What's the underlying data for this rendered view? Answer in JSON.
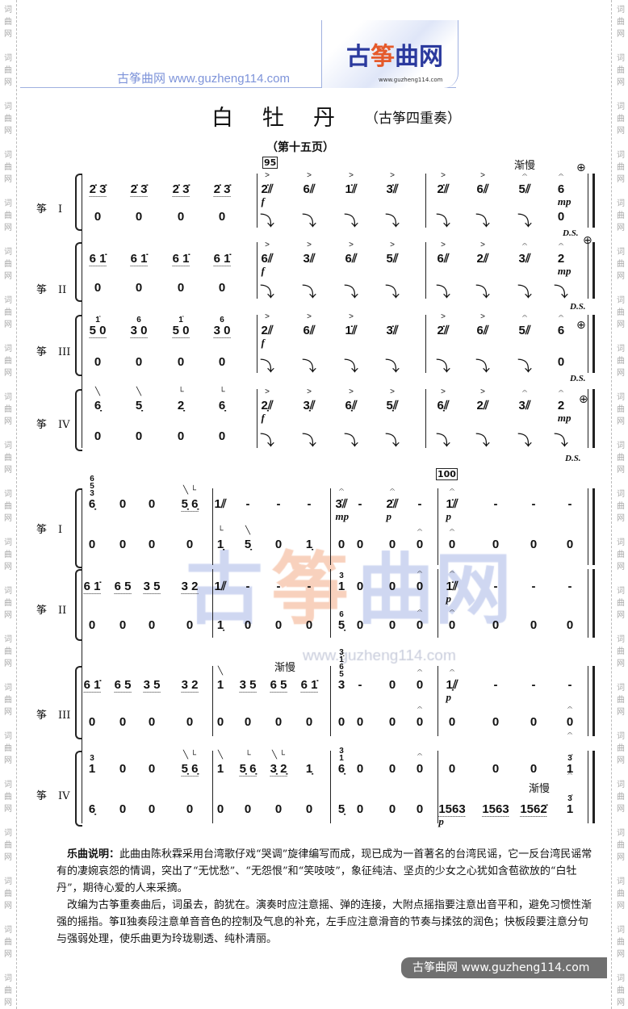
{
  "margin_watermark": "词曲网",
  "banner": {
    "site_text": "古筝曲网 www.guzheng114.com",
    "logo": {
      "gu": "古",
      "zheng": "筝",
      "qu_wang": "曲网",
      "url": "www.guzheng114.com"
    }
  },
  "title": "白牡丹",
  "subtitle": "（古筝四重奏）",
  "page_label": "（第十五页）",
  "watermark": {
    "text_gu": "古",
    "text_zheng": "筝",
    "text_rest": "曲网",
    "url": "www.guzheng114.com"
  },
  "instruments": [
    {
      "name": "筝",
      "numeral": "I"
    },
    {
      "name": "筝",
      "numeral": "II"
    },
    {
      "name": "筝",
      "numeral": "III"
    },
    {
      "name": "筝",
      "numeral": "IV"
    }
  ],
  "rehearsal_marks": [
    "95",
    "100"
  ],
  "tempo_marks": [
    "渐慢",
    "渐慢",
    "渐慢"
  ],
  "ds_label": "D.S.",
  "coda_symbol": "⊕",
  "systems": [
    {
      "rows": [
        [
          {
            "t": "2̇ 3̇",
            "u": 1
          },
          {
            "t": "2̇ 3̇",
            "u": 1
          },
          {
            "t": "2̇ 3̇",
            "u": 1
          },
          {
            "t": "2̇ 3̇",
            "u": 1
          },
          {
            "t": "2̇⫽",
            "a": ">",
            "d": "f"
          },
          {
            "t": "6⫽",
            "a": ">"
          },
          {
            "t": "1̇⫽",
            "a": ">"
          },
          {
            "t": "3̇⫽",
            "a": ">"
          },
          {
            "t": "2̇⫽",
            "a": ">"
          },
          {
            "t": "6⫽",
            "a": ">"
          },
          {
            "t": "5⫽",
            "a": "𝄐"
          },
          {
            "t": "6",
            "a": "𝄐",
            "d": "mp"
          }
        ],
        [
          {
            "t": "0"
          },
          {
            "t": "0"
          },
          {
            "t": "0"
          },
          {
            "t": "0"
          },
          {
            "t": "⤵",
            "g": 1
          },
          {
            "t": "⤵",
            "g": 1
          },
          {
            "t": "⤵",
            "g": 1
          },
          {
            "t": "⤵",
            "g": 1
          },
          {
            "t": "⤵",
            "g": 1
          },
          {
            "t": "⤵",
            "g": 1
          },
          {
            "t": "⤵",
            "g": 1
          },
          {
            "t": "0"
          }
        ],
        [
          {
            "t": "6 1̇",
            "u": 1
          },
          {
            "t": "6 1̇",
            "u": 1
          },
          {
            "t": "6 1̇",
            "u": 1
          },
          {
            "t": "6 1̇",
            "u": 1
          },
          {
            "t": "6⫽",
            "a": ">",
            "d": "f"
          },
          {
            "t": "3⫽",
            "a": ">"
          },
          {
            "t": "6⫽",
            "a": ">"
          },
          {
            "t": "5⫽",
            "a": ">"
          },
          {
            "t": "6⫽",
            "a": ">"
          },
          {
            "t": "2⫽",
            "a": ">"
          },
          {
            "t": "3⫽",
            "a": "𝄐"
          },
          {
            "t": "2",
            "a": "𝄐",
            "d": "mp"
          }
        ],
        [
          {
            "t": "0"
          },
          {
            "t": "0"
          },
          {
            "t": "0"
          },
          {
            "t": "0"
          },
          {
            "t": "⤵",
            "g": 1
          },
          {
            "t": "⤵",
            "g": 1
          },
          {
            "t": "⤵",
            "g": 1
          },
          {
            "t": "⤵",
            "g": 1
          },
          {
            "t": "⤵",
            "g": 1
          },
          {
            "t": "⤵",
            "g": 1
          },
          {
            "t": "⤵",
            "g": 1
          },
          {
            "t": "⤵",
            "g": 1
          }
        ],
        [
          {
            "t": "5 0",
            "top": "1̇",
            "u": 1
          },
          {
            "t": "3 0",
            "top": "6",
            "u": 1
          },
          {
            "t": "5 0",
            "top": "1̇",
            "u": 1
          },
          {
            "t": "3 0",
            "top": "6",
            "u": 1
          },
          {
            "t": "2⫽",
            "a": ">",
            "d": "f"
          },
          {
            "t": "6⫽",
            "a": ">"
          },
          {
            "t": "1̇⫽",
            "a": ">"
          },
          {
            "t": "3̇⫽"
          },
          {
            "t": "2̇⫽",
            "a": ">"
          },
          {
            "t": "6⫽",
            "a": ">"
          },
          {
            "t": "5⫽",
            "a": "𝄐"
          },
          {
            "t": "6",
            "a": "𝄐"
          }
        ],
        [
          {
            "t": "0"
          },
          {
            "t": "0"
          },
          {
            "t": "0"
          },
          {
            "t": "0"
          },
          {
            "t": "⤵",
            "g": 1
          },
          {
            "t": "⤵",
            "g": 1
          },
          {
            "t": "⤵",
            "g": 1
          },
          {
            "t": "⤵",
            "g": 1
          },
          {
            "t": "⤵",
            "g": 1
          },
          {
            "t": "⤵",
            "g": 1
          },
          {
            "t": "⤵",
            "g": 1
          },
          {
            "t": "0"
          }
        ],
        [
          {
            "t": "6̣",
            "a": "╲"
          },
          {
            "t": "5̣",
            "a": "╲"
          },
          {
            "t": "2̣",
            "a": "└"
          },
          {
            "t": "6̣",
            "a": "└"
          },
          {
            "t": "2̣⫽",
            "a": ">",
            "d": "f"
          },
          {
            "t": "3̣⫽",
            "a": ">"
          },
          {
            "t": "6̣⫽",
            "a": ">"
          },
          {
            "t": "5̣⫽",
            "a": ">"
          },
          {
            "t": "6̣⫽",
            "a": ">"
          },
          {
            "t": "2⫽",
            "a": ">"
          },
          {
            "t": "3⫽",
            "a": "𝄐"
          },
          {
            "t": "2",
            "a": "𝄐",
            "d": "mp"
          }
        ],
        [
          {
            "t": "0"
          },
          {
            "t": "0"
          },
          {
            "t": "0"
          },
          {
            "t": "0"
          },
          {
            "t": "⤵",
            "g": 1
          },
          {
            "t": "⤵",
            "g": 1
          },
          {
            "t": "⤵",
            "g": 1
          },
          {
            "t": "⤵",
            "g": 1
          },
          {
            "t": "⤵",
            "g": 1
          },
          {
            "t": "⤵",
            "g": 1
          },
          {
            "t": "⤵",
            "g": 1
          },
          {
            "t": "⤵",
            "g": 1
          }
        ]
      ]
    },
    {
      "rows": [
        [
          {
            "t": "6̣",
            "top": "6\n5\n3"
          },
          {
            "t": "0"
          },
          {
            "t": "0"
          },
          {
            "t": "5̣ 6̣",
            "u": 1,
            "a": "╲ └"
          },
          {
            "t": "1⫽"
          },
          {
            "t": "-"
          },
          {
            "t": "-"
          },
          {
            "t": "-"
          },
          {
            "t": "3̇⫽",
            "a": "𝄐",
            "d": "mp"
          },
          {
            "t": "-"
          },
          {
            "t": "2̇⫽",
            "a": "𝄐",
            "d": "p"
          },
          {
            "t": "-"
          },
          {
            "t": "1̇⫽",
            "a": "𝄐",
            "d": "p"
          },
          {
            "t": "-"
          },
          {
            "t": "-"
          },
          {
            "t": "-"
          }
        ],
        [
          {
            "t": "0"
          },
          {
            "t": "0"
          },
          {
            "t": "0"
          },
          {
            "t": "0"
          },
          {
            "t": "1̣",
            "a": "└"
          },
          {
            "t": "5̣",
            "a": "╲"
          },
          {
            "t": "0"
          },
          {
            "t": "1̣"
          },
          {
            "t": "0"
          },
          {
            "t": "0"
          },
          {
            "t": "0"
          },
          {
            "t": "0",
            "a": "𝄐"
          },
          {
            "t": "0",
            "a": "𝄐"
          },
          {
            "t": "0"
          },
          {
            "t": "0"
          },
          {
            "t": "0"
          }
        ],
        [
          {
            "t": "6 1̇",
            "u": 1
          },
          {
            "t": "6 5",
            "u": 1
          },
          {
            "t": "3 5",
            "u": 1
          },
          {
            "t": "3 2",
            "u": 1
          },
          {
            "t": "1⫽"
          },
          {
            "t": "-"
          },
          {
            "t": "-"
          },
          {
            "t": "-"
          },
          {
            "t": "1",
            "top": "3"
          },
          {
            "t": "0"
          },
          {
            "t": "0"
          },
          {
            "t": "0",
            "a": "𝄐"
          },
          {
            "t": "1̇⫽",
            "a": "𝄐",
            "d": "p"
          },
          {
            "t": "-"
          },
          {
            "t": "-"
          },
          {
            "t": "-"
          }
        ],
        [
          {
            "t": "0"
          },
          {
            "t": "0"
          },
          {
            "t": "0"
          },
          {
            "t": "0"
          },
          {
            "t": "1̣"
          },
          {
            "t": "0"
          },
          {
            "t": "0"
          },
          {
            "t": "0"
          },
          {
            "t": "5̣",
            "top": "6"
          },
          {
            "t": "0"
          },
          {
            "t": "0"
          },
          {
            "t": "0",
            "a": "𝄐"
          },
          {
            "t": "0",
            "a": "𝄐"
          },
          {
            "t": "0"
          },
          {
            "t": "0"
          },
          {
            "t": "0"
          }
        ],
        [
          {
            "t": "6 1̇",
            "u": 1
          },
          {
            "t": "6 5",
            "u": 1
          },
          {
            "t": "3 5",
            "u": 1
          },
          {
            "t": "3 2",
            "u": 1
          },
          {
            "t": "1",
            "a": "╲"
          },
          {
            "t": "3 5",
            "u": 1
          },
          {
            "t": "6 5",
            "u": 1
          },
          {
            "t": "6 1̇",
            "u": 1
          },
          {
            "t": "3",
            "top": "3̣\n1\n6\n5"
          },
          {
            "t": "-"
          },
          {
            "t": "0"
          },
          {
            "t": "0",
            "a": "𝄐"
          },
          {
            "t": "1̣⫽",
            "a": "𝄐",
            "d": "p"
          },
          {
            "t": "-"
          },
          {
            "t": "-"
          },
          {
            "t": "-"
          }
        ],
        [
          {
            "t": "0"
          },
          {
            "t": "0"
          },
          {
            "t": "0"
          },
          {
            "t": "0"
          },
          {
            "t": "0"
          },
          {
            "t": "0"
          },
          {
            "t": "0"
          },
          {
            "t": "0"
          },
          {
            "t": "0"
          },
          {
            "t": "0"
          },
          {
            "t": "0"
          },
          {
            "t": "0",
            "a": "𝄐"
          },
          {
            "t": "0"
          },
          {
            "t": "0"
          },
          {
            "t": "0"
          },
          {
            "t": "0",
            "a": "𝄐"
          }
        ],
        [
          {
            "t": "1",
            "top": "3"
          },
          {
            "t": "0"
          },
          {
            "t": "0"
          },
          {
            "t": "5̣ 6̣",
            "u": 1,
            "a": "╲ └"
          },
          {
            "t": "1",
            "a": "╲"
          },
          {
            "t": "5̣ 6̣",
            "u": 1,
            "a": "└"
          },
          {
            "t": "3̣ 2̣",
            "u": 1,
            "a": "╲ └"
          },
          {
            "t": "1̣"
          },
          {
            "t": "6̣",
            "top": "3\n1"
          },
          {
            "t": "0"
          },
          {
            "t": "0"
          },
          {
            "t": "0",
            "a": "𝄐"
          },
          {
            "t": "0"
          },
          {
            "t": "0"
          },
          {
            "t": "0"
          },
          {
            "t": "1",
            "top": "3̇",
            "a": "𝄐"
          }
        ],
        [
          {
            "t": "6̣"
          },
          {
            "t": "0"
          },
          {
            "t": "0"
          },
          {
            "t": "0"
          },
          {
            "t": "0"
          },
          {
            "t": "0"
          },
          {
            "t": "0"
          },
          {
            "t": "0"
          },
          {
            "t": "5̣"
          },
          {
            "t": "0"
          },
          {
            "t": "0"
          },
          {
            "t": "0"
          },
          {
            "t": "1563",
            "u": 1,
            "d": "p"
          },
          {
            "t": "1563",
            "u": 1
          },
          {
            "t": "1562̇",
            "u": 1
          },
          {
            "t": "1",
            "top": "3̇",
            "a": "𝄐"
          }
        ]
      ]
    }
  ],
  "notes": {
    "heading": "乐曲说明：",
    "para1": "此曲由陈秋霖采用台湾歌仔戏“哭调”旋律编写而成，现已成为一首著名的台湾民谣，它一反台湾民谣常有的凄婉哀怨的情调，突出了“无忧愁”、“无怨恨”和“笑吱吱”，象征纯洁、坚贞的少女之心犹如含苞欲放的“白牡丹”，期待心爱的人来采摘。",
    "para2": "改编为古筝重奏曲后，词虽去，韵犹在。演奏时应注意摇、弹的连接，大附点摇指要注意出音平和，避免习惯性渐强的摇指。筝Ⅱ独奏段注意单音音色的控制及气息的补充，左手应注意滑音的节奏与揉弦的润色；快板段要注意分句与强弱处理，使乐曲更为玲珑剔透、纯朴清丽。"
  },
  "footer": {
    "text": "古筝曲网 www.guzheng114.com"
  }
}
